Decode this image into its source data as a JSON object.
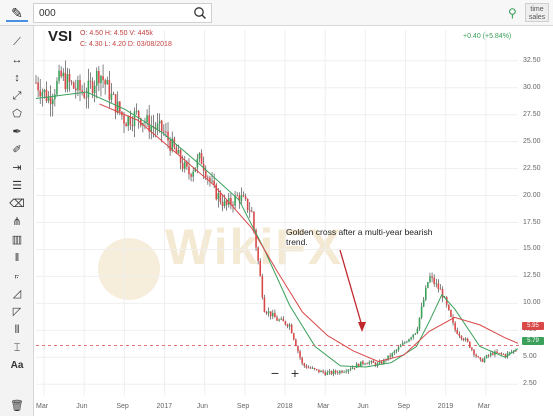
{
  "search": {
    "value": "000"
  },
  "toolbar": {
    "time_sales_label": "time sales",
    "tools": [
      "line-tool",
      "horizontal-line-tool",
      "vertical-line-tool",
      "ray-tool",
      "polygon-tool",
      "brush-tool",
      "pen-tool",
      "measure-tool",
      "parallel-channel-tool",
      "eraser-tool",
      "pitchfork-tool",
      "bar-pattern-tool",
      "parallel-lines-tool",
      "fib-fan-tool",
      "gann-fan-tool",
      "fib-retracement-tool",
      "fib-timezone-tool",
      "pivot-tool",
      "text-tool"
    ],
    "text_tool_label": "Aa"
  },
  "header": {
    "ticker": "VSI",
    "ohlc_line1": "O: 4.50 H: 4.50 V: 445k",
    "ohlc_line2": "C: 4.30 L: 4.20 D: 03/08/2018",
    "change": "+0.40 (+5.84%)"
  },
  "chart_data": {
    "type": "candlestick",
    "title": "VSI",
    "y_ticks": [
      "32.50",
      "30.00",
      "27.50",
      "25.00",
      "22.50",
      "20.00",
      "17.50",
      "15.00",
      "12.50",
      "10.00",
      "7.50",
      "5.00",
      "2.50"
    ],
    "x_ticks": [
      "Mar",
      "Jun",
      "Sep",
      "2017",
      "Jun",
      "Sep",
      "2018",
      "Mar",
      "Jun",
      "Sep",
      "2019",
      "Mar"
    ],
    "ylim": [
      1.5,
      33.5
    ],
    "series": [
      {
        "name": "price",
        "color": "#333333",
        "points": [
          [
            0,
            30.5
          ],
          [
            1,
            29
          ],
          [
            2,
            31
          ],
          [
            3,
            30
          ],
          [
            4,
            29.5
          ],
          [
            5,
            31.5
          ],
          [
            6,
            29
          ],
          [
            7,
            27
          ],
          [
            8,
            27.5
          ],
          [
            9,
            26.5
          ],
          [
            10,
            26
          ],
          [
            11,
            24
          ],
          [
            12,
            22
          ],
          [
            13,
            23.5
          ],
          [
            14,
            20.5
          ],
          [
            15,
            19
          ],
          [
            16,
            20
          ],
          [
            17,
            18.5
          ],
          [
            18,
            9.5
          ],
          [
            19,
            8.5
          ],
          [
            20,
            8
          ],
          [
            21,
            4.3
          ],
          [
            22,
            3.8
          ],
          [
            23,
            3.5
          ],
          [
            24,
            3.7
          ],
          [
            25,
            4.1
          ],
          [
            26,
            4.6
          ],
          [
            27,
            4.3
          ],
          [
            28,
            5.2
          ],
          [
            29,
            6.3
          ],
          [
            30,
            7.5
          ],
          [
            31,
            12.5
          ],
          [
            32,
            11
          ],
          [
            33,
            7.6
          ],
          [
            34,
            6.4
          ],
          [
            35,
            4.6
          ],
          [
            36,
            5.4
          ],
          [
            37,
            5.2
          ],
          [
            38,
            5.8
          ]
        ]
      },
      {
        "name": "sma-short",
        "color": "#3aa05a",
        "points": [
          [
            0,
            29
          ],
          [
            4,
            29.6
          ],
          [
            7,
            28
          ],
          [
            10,
            25.8
          ],
          [
            13,
            22.8
          ],
          [
            16,
            19.6
          ],
          [
            18,
            15
          ],
          [
            20,
            9.8
          ],
          [
            22,
            6
          ],
          [
            24,
            4.2
          ],
          [
            26,
            4.1
          ],
          [
            28,
            4.5
          ],
          [
            30,
            6
          ],
          [
            31,
            8.3
          ],
          [
            32,
            10.8
          ],
          [
            33,
            9.5
          ],
          [
            35,
            6
          ],
          [
            37,
            5
          ],
          [
            38,
            5.8
          ]
        ]
      },
      {
        "name": "sma-long",
        "color": "#d94848",
        "points": [
          [
            5,
            28.5
          ],
          [
            8,
            27
          ],
          [
            11,
            24
          ],
          [
            14,
            21
          ],
          [
            17,
            17
          ],
          [
            19,
            13
          ],
          [
            21,
            9.2
          ],
          [
            23,
            7
          ],
          [
            25,
            5.6
          ],
          [
            27,
            4.6
          ],
          [
            29,
            5.2
          ],
          [
            31,
            7.4
          ],
          [
            33,
            8.7
          ],
          [
            35,
            8
          ],
          [
            37,
            6.8
          ],
          [
            38,
            6.3
          ]
        ]
      }
    ],
    "horizontal_level": 6.1,
    "price_tags": [
      "5.95",
      "5.79"
    ],
    "annotation": "Golden cross after a multi-year bearish trend."
  },
  "zoom": {
    "minus": "−",
    "plus": "+"
  },
  "watermark": "WikiFX",
  "colors": {
    "up": "#3aa05a",
    "down": "#d94848",
    "accent": "#4a90e2"
  }
}
